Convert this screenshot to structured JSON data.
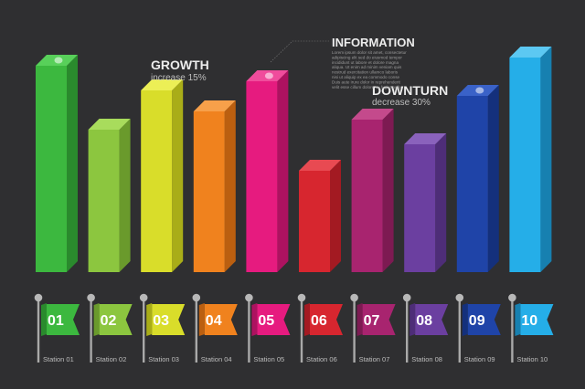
{
  "chart_data": {
    "type": "bar",
    "categories": [
      "Station 01",
      "Station 02",
      "Station 03",
      "Station 04",
      "Station 05",
      "Station 06",
      "Station 07",
      "Station 08",
      "Station 09",
      "Station 10"
    ],
    "flag_numbers": [
      "01",
      "02",
      "03",
      "04",
      "05",
      "06",
      "07",
      "08",
      "09",
      "10"
    ],
    "values": [
      226,
      156,
      199,
      176,
      209,
      111,
      167,
      140,
      193,
      235
    ],
    "ylim": [
      0,
      240
    ],
    "title": "",
    "xlabel": "",
    "ylabel": "",
    "colors": {
      "front": [
        "#3cb83f",
        "#8cc63f",
        "#d9dd2a",
        "#f0821e",
        "#e61b7f",
        "#d7262f",
        "#a8246f",
        "#6b3fa0",
        "#1f44a8",
        "#25aee8"
      ],
      "side": [
        "#2a8a2d",
        "#6a9a2c",
        "#a9ad18",
        "#bb5f10",
        "#ad1260",
        "#a31a22",
        "#7d1a52",
        "#4e2d78",
        "#14307c",
        "#1780b0"
      ],
      "top": [
        "#58d05a",
        "#a8dc5c",
        "#ecef56",
        "#f7a04a",
        "#f04c9c",
        "#e84a52",
        "#c44a8c",
        "#8a62bc",
        "#3a62c8",
        "#5cc8f2"
      ]
    },
    "grid": false,
    "legend": "none",
    "annotations": [
      {
        "title": "GROWTH",
        "subtitle": "increase 15%"
      },
      {
        "title": "DOWNTURN",
        "subtitle": "decrease 30%"
      }
    ]
  },
  "info_block": {
    "title": "INFORMATION",
    "lines": [
      "Lorem ipsum dolor sit amet, consectetur",
      "adipiscing elit sed do eiusmod tempor",
      "incididunt ut labore et dolore magna",
      "aliqua. Ut enim ad minim veniam quis",
      "nostrud exercitation ullamco laboris",
      "nisi ut aliquip ex ea commodo conse",
      "Duis aute irure dolor in reprehenderit",
      "velit esse cillum dolore eu fugiat nulla"
    ]
  }
}
